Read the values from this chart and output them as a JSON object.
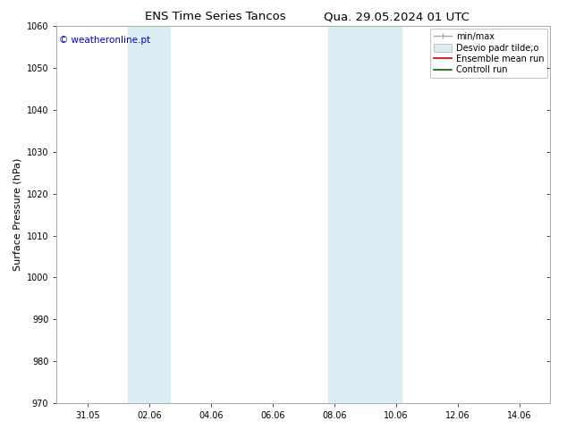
{
  "title1": "ENS Time Series Tancos",
  "title2": "Qua. 29.05.2024 01 UTC",
  "ylabel": "Surface Pressure (hPa)",
  "ylim": [
    970,
    1060
  ],
  "yticks": [
    970,
    980,
    990,
    1000,
    1010,
    1020,
    1030,
    1040,
    1050,
    1060
  ],
  "xlim": [
    0,
    16
  ],
  "xtick_labels": [
    "31.05",
    "02.06",
    "04.06",
    "06.06",
    "08.06",
    "10.06",
    "12.06",
    "14.06"
  ],
  "xtick_positions": [
    1,
    3,
    5,
    7,
    9,
    11,
    13,
    15
  ],
  "shaded_bands": [
    {
      "xmin": 2.3,
      "xmax": 3.7,
      "color": "#daeef3"
    },
    {
      "xmin": 8.8,
      "xmax": 11.2,
      "color": "#daeef3"
    }
  ],
  "copyright_text": "© weatheronline.pt",
  "bg_color": "#ffffff",
  "plot_bg_color": "#ffffff",
  "title_fontsize": 9.5,
  "tick_fontsize": 7,
  "ylabel_fontsize": 8,
  "legend_fontsize": 7,
  "copyright_fontsize": 7.5
}
